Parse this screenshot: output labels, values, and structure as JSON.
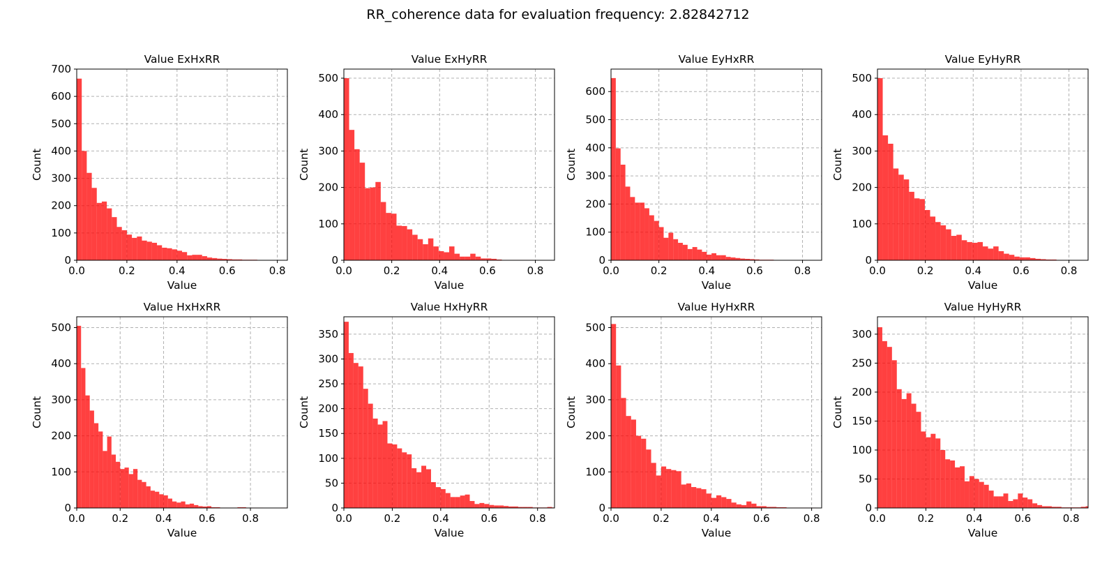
{
  "figure": {
    "suptitle": "RR_coherence data for evaluation frequency: 2.82842712"
  },
  "colors": {
    "bar_fill": "#ff0000",
    "bar_opacity": 0.75,
    "grid": "#b0b0b0",
    "axis": "#000000"
  },
  "chart_data": [
    {
      "type": "bar",
      "title": "Value ExHxRR",
      "xlabel": "Value",
      "ylabel": "Count",
      "xlim": [
        0,
        0.84
      ],
      "ylim": [
        0,
        700
      ],
      "xticks": [
        0.0,
        0.2,
        0.4,
        0.6,
        0.8
      ],
      "yticks": [
        0,
        100,
        200,
        300,
        400,
        500,
        600,
        700
      ],
      "grid": true,
      "bin_start": 0,
      "bin_width": 0.02,
      "values": [
        665,
        400,
        320,
        265,
        210,
        215,
        190,
        158,
        122,
        110,
        94,
        82,
        87,
        72,
        68,
        64,
        55,
        46,
        44,
        40,
        35,
        30,
        18,
        20,
        20,
        15,
        10,
        8,
        6,
        5,
        4,
        3,
        3,
        2,
        2,
        2,
        1,
        1,
        1,
        1,
        1,
        1
      ]
    },
    {
      "type": "bar",
      "title": "Value ExHyRR",
      "xlabel": "Value",
      "ylabel": "Count",
      "xlim": [
        0,
        0.88
      ],
      "ylim": [
        0,
        525
      ],
      "xticks": [
        0.0,
        0.2,
        0.4,
        0.6,
        0.8
      ],
      "yticks": [
        0,
        100,
        200,
        300,
        400,
        500
      ],
      "grid": true,
      "bin_start": 0,
      "bin_width": 0.022,
      "values": [
        500,
        358,
        305,
        268,
        198,
        200,
        215,
        160,
        130,
        128,
        95,
        94,
        85,
        70,
        58,
        44,
        60,
        38,
        25,
        22,
        38,
        18,
        10,
        10,
        18,
        10,
        5,
        5,
        4,
        2,
        1,
        1,
        1,
        1,
        1,
        1,
        0,
        0,
        0,
        0
      ]
    },
    {
      "type": "bar",
      "title": "Value EyHxRR",
      "xlabel": "Value",
      "ylabel": "Count",
      "xlim": [
        0,
        0.88
      ],
      "ylim": [
        0,
        680
      ],
      "xticks": [
        0.0,
        0.2,
        0.4,
        0.6,
        0.8
      ],
      "yticks": [
        0,
        100,
        200,
        300,
        400,
        500,
        600
      ],
      "grid": true,
      "bin_start": 0,
      "bin_width": 0.02,
      "values": [
        648,
        398,
        340,
        262,
        225,
        205,
        205,
        185,
        160,
        140,
        118,
        80,
        98,
        75,
        62,
        55,
        40,
        47,
        38,
        30,
        20,
        25,
        18,
        18,
        12,
        10,
        8,
        6,
        5,
        4,
        3,
        2,
        2,
        2,
        1,
        1,
        1,
        1,
        0,
        0,
        0,
        0,
        0,
        0
      ]
    },
    {
      "type": "bar",
      "title": "Value EyHyRR",
      "xlabel": "Value",
      "ylabel": "Count",
      "xlim": [
        0,
        0.88
      ],
      "ylim": [
        0,
        525
      ],
      "xticks": [
        0.0,
        0.2,
        0.4,
        0.6,
        0.8
      ],
      "yticks": [
        0,
        100,
        200,
        300,
        400,
        500
      ],
      "grid": true,
      "bin_start": 0,
      "bin_width": 0.022,
      "values": [
        500,
        343,
        320,
        252,
        235,
        222,
        188,
        170,
        168,
        138,
        120,
        105,
        96,
        85,
        67,
        70,
        55,
        50,
        48,
        50,
        38,
        32,
        38,
        25,
        18,
        15,
        10,
        8,
        8,
        6,
        4,
        3,
        2,
        2,
        1,
        1,
        0,
        0,
        0,
        0
      ]
    },
    {
      "type": "bar",
      "title": "Value HxHxRR",
      "xlabel": "Value",
      "ylabel": "Count",
      "xlim": [
        0,
        0.97
      ],
      "ylim": [
        0,
        530
      ],
      "xticks": [
        0.0,
        0.2,
        0.4,
        0.6,
        0.8
      ],
      "yticks": [
        0,
        100,
        200,
        300,
        400,
        500
      ],
      "grid": true,
      "bin_start": 0,
      "bin_width": 0.02,
      "values": [
        505,
        388,
        312,
        270,
        235,
        212,
        158,
        198,
        148,
        128,
        108,
        112,
        94,
        108,
        78,
        72,
        60,
        48,
        45,
        38,
        35,
        26,
        18,
        15,
        18,
        10,
        12,
        8,
        5,
        4,
        5,
        2,
        2,
        1,
        1,
        1,
        1,
        2,
        2,
        1,
        1,
        1,
        1,
        0,
        0,
        0,
        0,
        1,
        1
      ]
    },
    {
      "type": "bar",
      "title": "Value HxHyRR",
      "xlabel": "Value",
      "ylabel": "Count",
      "xlim": [
        0,
        0.87
      ],
      "ylim": [
        0,
        385
      ],
      "xticks": [
        0.0,
        0.2,
        0.4,
        0.6,
        0.8
      ],
      "yticks": [
        0,
        50,
        100,
        150,
        200,
        250,
        300,
        350
      ],
      "grid": true,
      "bin_start": 0,
      "bin_width": 0.02,
      "values": [
        375,
        312,
        292,
        285,
        240,
        210,
        180,
        168,
        175,
        130,
        128,
        120,
        112,
        108,
        80,
        72,
        85,
        78,
        52,
        42,
        38,
        30,
        22,
        22,
        25,
        27,
        14,
        8,
        10,
        8,
        6,
        5,
        5,
        4,
        3,
        3,
        2,
        2,
        2,
        1,
        1,
        1,
        2,
        1
      ]
    },
    {
      "type": "bar",
      "title": "Value HyHxRR",
      "xlabel": "Value",
      "ylabel": "Count",
      "xlim": [
        0,
        0.84
      ],
      "ylim": [
        0,
        530
      ],
      "xticks": [
        0.0,
        0.2,
        0.4,
        0.6,
        0.8
      ],
      "yticks": [
        0,
        100,
        200,
        300,
        400,
        500
      ],
      "grid": true,
      "bin_start": 0,
      "bin_width": 0.02,
      "values": [
        510,
        395,
        305,
        255,
        245,
        200,
        192,
        162,
        125,
        90,
        115,
        108,
        105,
        102,
        65,
        68,
        58,
        55,
        52,
        40,
        28,
        35,
        30,
        25,
        15,
        10,
        8,
        18,
        12,
        5,
        5,
        3,
        3,
        2,
        2,
        1,
        1,
        1,
        1,
        1,
        1,
        0
      ]
    },
    {
      "type": "bar",
      "title": "Value HyHyRR",
      "xlabel": "Value",
      "ylabel": "Count",
      "xlim": [
        0,
        0.87
      ],
      "ylim": [
        0,
        330
      ],
      "xticks": [
        0.0,
        0.2,
        0.4,
        0.6,
        0.8
      ],
      "yticks": [
        0,
        50,
        100,
        150,
        200,
        250,
        300
      ],
      "grid": true,
      "bin_start": 0,
      "bin_width": 0.02,
      "values": [
        312,
        288,
        278,
        255,
        205,
        188,
        198,
        180,
        166,
        132,
        122,
        128,
        120,
        100,
        84,
        82,
        70,
        72,
        46,
        55,
        50,
        45,
        40,
        30,
        20,
        20,
        25,
        12,
        15,
        25,
        18,
        15,
        8,
        5,
        3,
        3,
        2,
        2,
        1,
        1,
        1,
        1,
        2,
        3
      ]
    }
  ]
}
